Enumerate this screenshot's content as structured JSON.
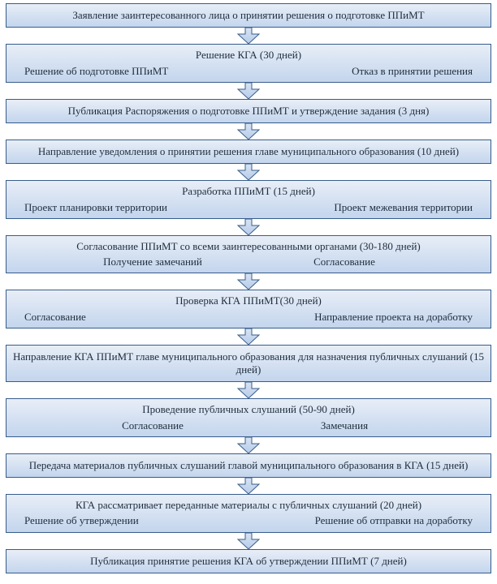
{
  "type": "flowchart",
  "background_color": "#ffffff",
  "box_border_color": "#385d8a",
  "box_gradient_top": "#e8eef7",
  "box_gradient_bottom": "#c3d5ed",
  "arrow_fill_top": "#d7e3f4",
  "arrow_fill_bottom": "#b7cce9",
  "arrow_stroke": "#385d8a",
  "text_color": "#1f2d3d",
  "font_family": "Times New Roman",
  "font_size_pt": 10,
  "steps": [
    {
      "title": "Заявление заинтересованного лица о принятии решения о подготовке ППиМТ"
    },
    {
      "title": "Решение КГА (30 дней)",
      "left": "Решение об подготовке ППиМТ",
      "right": "Отказ в принятии решения"
    },
    {
      "title": "Публикация Распоряжения о подготовке ППиМТ и утверждение задания (3 дня)"
    },
    {
      "title": "Направление уведомления о принятии решения главе муниципального образования (10 дней)"
    },
    {
      "title": "Разработка ППиМТ (15 дней)",
      "left": "Проект планировки территории",
      "right": "Проект межевания территории"
    },
    {
      "title": "Согласование ППиМТ со всеми заинтересованными органами (30-180  дней)",
      "left": "Получение замечаний",
      "right": "Согласование"
    },
    {
      "title": "Проверка КГА ППиМТ(30  дней)",
      "left": "Согласование",
      "right": "Направление проекта на доработку"
    },
    {
      "title": "Направление КГА ППиМТ главе муниципального образования для назначения публичных слушаний (15 дней)"
    },
    {
      "title": "Проведение публичных слушаний (50-90  дней)",
      "left": "Согласование",
      "right": "Замечания"
    },
    {
      "title": "Передача материалов публичных слушаний  главой муниципального образования в КГА (15 дней)"
    },
    {
      "title": "КГА рассматривает переданные материалы с публичных слушаний (20  дней)",
      "left": "Решение об утверждении",
      "right": "Решение об отправки на доработку"
    },
    {
      "title": "Публикация принятие решения КГА об утверждении ППиМТ (7 дней)"
    }
  ]
}
